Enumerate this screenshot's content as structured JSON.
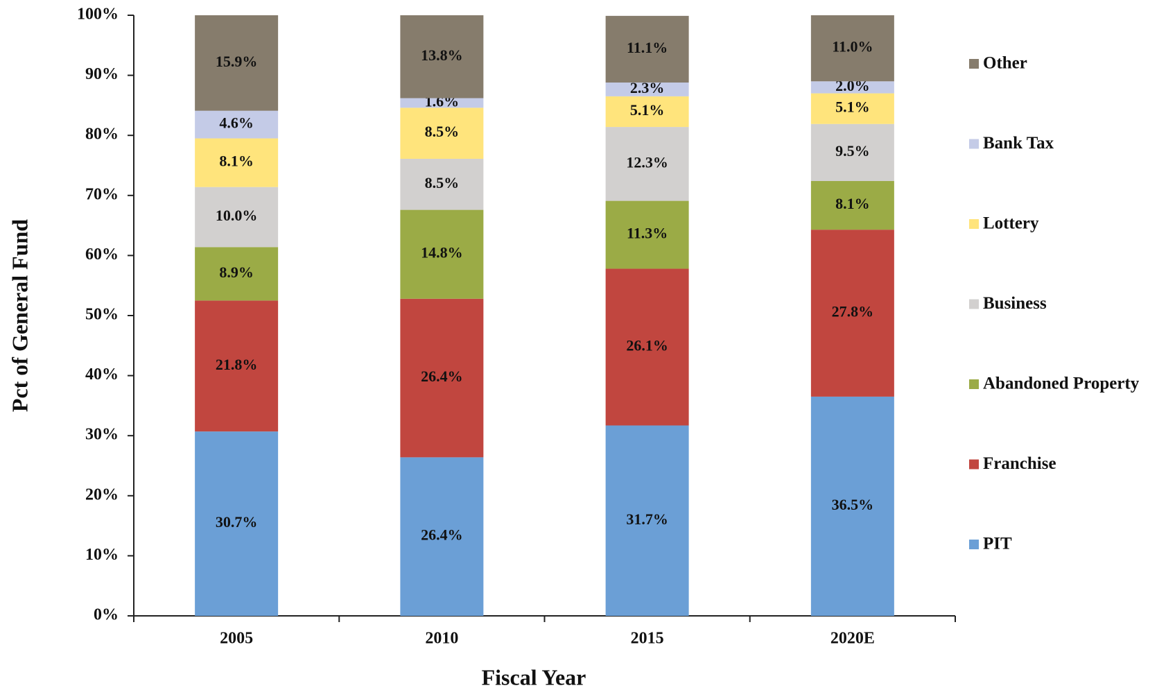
{
  "chart_data": {
    "type": "stacked_bar",
    "xlabel": "Fiscal Year",
    "ylabel": "Pct of General Fund",
    "categories": [
      "2005",
      "2010",
      "2015",
      "2020E"
    ],
    "series": [
      {
        "name": "PIT",
        "color": "#6b9fd6",
        "values": [
          30.7,
          26.4,
          31.7,
          36.5
        ],
        "value_labels": [
          "30.7%",
          "26.4%",
          "31.7%",
          "36.5%"
        ]
      },
      {
        "name": "Franchise",
        "color": "#c1463f",
        "values": [
          21.8,
          26.4,
          26.1,
          27.8
        ],
        "value_labels": [
          "21.8%",
          "26.4%",
          "26.1%",
          "27.8%"
        ]
      },
      {
        "name": "Abandoned Property",
        "color": "#9bab46",
        "values": [
          8.9,
          14.8,
          11.3,
          8.1
        ],
        "value_labels": [
          "8.9%",
          "14.8%",
          "11.3%",
          "8.1%"
        ]
      },
      {
        "name": "Business",
        "color": "#d2d0cf",
        "values": [
          10.0,
          8.5,
          12.3,
          9.5
        ],
        "value_labels": [
          "10.0%",
          "8.5%",
          "12.3%",
          "9.5%"
        ]
      },
      {
        "name": "Lottery",
        "color": "#ffe47c",
        "values": [
          8.1,
          8.5,
          5.1,
          5.1
        ],
        "value_labels": [
          "8.1%",
          "8.5%",
          "5.1%",
          "5.1%"
        ]
      },
      {
        "name": "Bank Tax",
        "color": "#c4cbe7",
        "values": [
          4.6,
          1.6,
          2.3,
          2.0
        ],
        "value_labels": [
          "4.6%",
          "1.6%",
          "2.3%",
          "2.0%"
        ]
      },
      {
        "name": "Other",
        "color": "#867c6c",
        "values": [
          15.9,
          13.8,
          11.1,
          11.0
        ],
        "value_labels": [
          "15.9%",
          "13.8%",
          "11.1%",
          "11.0%"
        ]
      }
    ],
    "ylim": [
      0,
      100
    ],
    "yticks": [
      {
        "value": 0,
        "label": "0%"
      },
      {
        "value": 10,
        "label": "10%"
      },
      {
        "value": 20,
        "label": "20%"
      },
      {
        "value": 30,
        "label": "30%"
      },
      {
        "value": 40,
        "label": "40%"
      },
      {
        "value": 50,
        "label": "50%"
      },
      {
        "value": 60,
        "label": "60%"
      },
      {
        "value": 70,
        "label": "70%"
      },
      {
        "value": 80,
        "label": "80%"
      },
      {
        "value": 90,
        "label": "90%"
      },
      {
        "value": 100,
        "label": "100%"
      }
    ],
    "legend": "right",
    "grid": false
  }
}
